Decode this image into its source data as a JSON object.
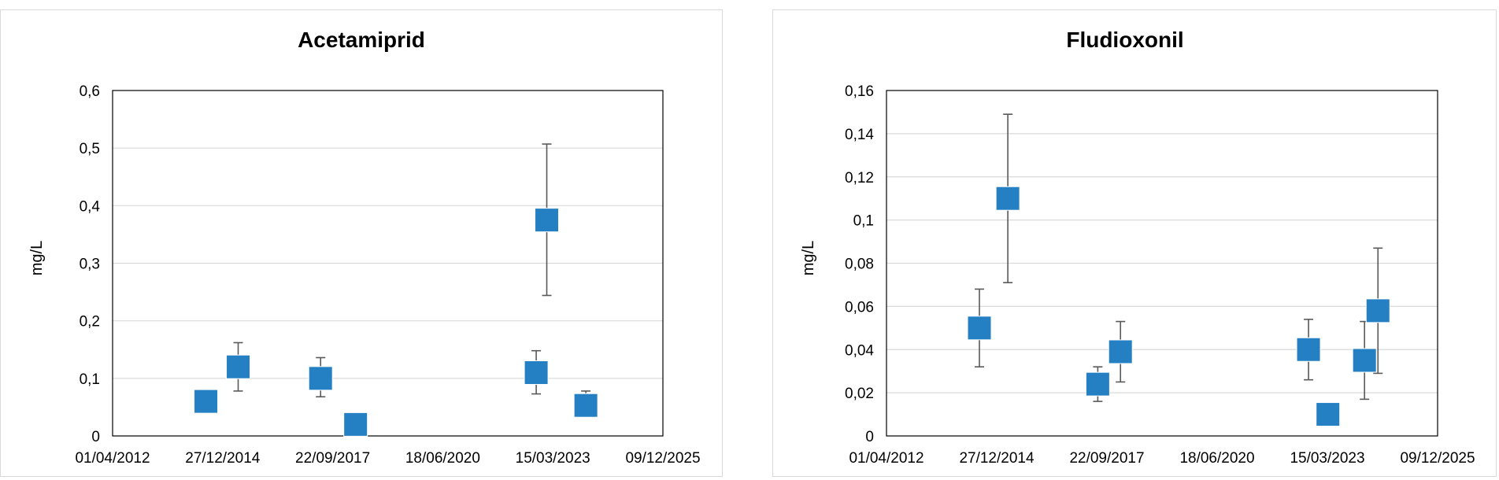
{
  "chart_data": [
    {
      "type": "scatter",
      "title": "Acetamiprid",
      "xlabel": "",
      "ylabel": "mg/L",
      "xlim": [
        "01/04/2012",
        "09/12/2025"
      ],
      "x_ticks": [
        "01/04/2012",
        "27/12/2014",
        "22/09/2017",
        "18/06/2020",
        "15/03/2023",
        "09/12/2025"
      ],
      "ylim": [
        0,
        0.6
      ],
      "y_ticks": [
        "0",
        "0,1",
        "0,2",
        "0,3",
        "0,4",
        "0,5",
        "0,6"
      ],
      "grid": true,
      "marker": "square",
      "marker_color": "#2580c3",
      "points": [
        {
          "x": "28/07/2014",
          "y": 0.06,
          "err_low": 0.06,
          "err_high": 0.06
        },
        {
          "x": "17/05/2015",
          "y": 0.12,
          "err_low": 0.078,
          "err_high": 0.162
        },
        {
          "x": "04/06/2017",
          "y": 0.1,
          "err_low": 0.068,
          "err_high": 0.136
        },
        {
          "x": "18/04/2018",
          "y": 0.02,
          "err_low": 0.02,
          "err_high": 0.02
        },
        {
          "x": "15/10/2022",
          "y": 0.11,
          "err_low": 0.073,
          "err_high": 0.148
        },
        {
          "x": "19/01/2023",
          "y": 0.375,
          "err_low": 0.244,
          "err_high": 0.507
        },
        {
          "x": "09/01/2024",
          "y": 0.053,
          "err_low": 0.053,
          "err_high": 0.078
        }
      ]
    },
    {
      "type": "scatter",
      "title": "Fludioxonil",
      "xlabel": "",
      "ylabel": "mg/L",
      "xlim": [
        "01/04/2012",
        "09/12/2025"
      ],
      "x_ticks": [
        "01/04/2012",
        "27/12/2014",
        "22/09/2017",
        "18/06/2020",
        "15/03/2023",
        "09/12/2025"
      ],
      "ylim": [
        0,
        0.16
      ],
      "y_ticks": [
        "0",
        "0,02",
        "0,04",
        "0,06",
        "0,08",
        "0,1",
        "0,12",
        "0,14",
        "0,16"
      ],
      "grid": true,
      "marker": "square",
      "marker_color": "#2580c3",
      "points": [
        {
          "x": "23/07/2014",
          "y": 0.05,
          "err_low": 0.032,
          "err_high": 0.068
        },
        {
          "x": "07/04/2015",
          "y": 0.11,
          "err_low": 0.071,
          "err_high": 0.149
        },
        {
          "x": "01/07/2017",
          "y": 0.024,
          "err_low": 0.016,
          "err_high": 0.032
        },
        {
          "x": "23/01/2018",
          "y": 0.039,
          "err_low": 0.025,
          "err_high": 0.053
        },
        {
          "x": "25/09/2022",
          "y": 0.04,
          "err_low": 0.026,
          "err_high": 0.054
        },
        {
          "x": "20/03/2023",
          "y": 0.01,
          "err_low": 0.01,
          "err_high": 0.01
        },
        {
          "x": "15/02/2024",
          "y": 0.035,
          "err_low": 0.017,
          "err_high": 0.053
        },
        {
          "x": "16/06/2024",
          "y": 0.058,
          "err_low": 0.029,
          "err_high": 0.087
        }
      ]
    }
  ]
}
